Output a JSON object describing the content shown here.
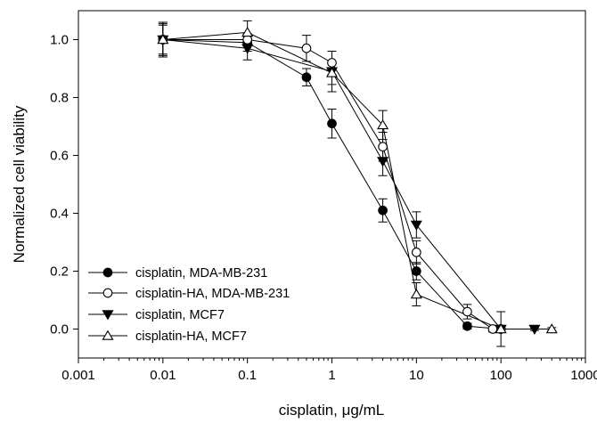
{
  "chart_data": {
    "type": "scatter",
    "title": "",
    "xlabel": "cisplatin, μg/mL",
    "ylabel": "Normalized cell viability",
    "x_scale": "log",
    "xlim": [
      0.001,
      1000
    ],
    "ylim": [
      -0.1,
      1.1
    ],
    "x_ticks": [
      0.001,
      0.01,
      0.1,
      1,
      10,
      100,
      1000
    ],
    "x_tick_labels": [
      "0.001",
      "0.01",
      "0.1",
      "1",
      "10",
      "100",
      "1000"
    ],
    "y_ticks": [
      0.0,
      0.2,
      0.4,
      0.6,
      0.8,
      1.0
    ],
    "y_tick_labels": [
      "0.0",
      "0.2",
      "0.4",
      "0.6",
      "0.8",
      "1.0"
    ],
    "grid": false,
    "legend_position": "bottom-left",
    "series": [
      {
        "name": "cisplatin, MDA-MB-231",
        "marker": "filled-circle",
        "x": [
          0.01,
          0.1,
          0.5,
          1,
          4,
          10,
          40,
          100
        ],
        "y": [
          1.0,
          0.99,
          0.87,
          0.71,
          0.41,
          0.2,
          0.01,
          0.0
        ],
        "err": [
          0.06,
          0.03,
          0.03,
          0.05,
          0.04,
          0.03,
          0.01,
          0.01
        ]
      },
      {
        "name": "cisplatin-HA, MDA-MB-231",
        "marker": "open-circle",
        "x": [
          0.01,
          0.1,
          0.5,
          1,
          4,
          10,
          40,
          80,
          100
        ],
        "y": [
          1.0,
          1.0,
          0.97,
          0.92,
          0.63,
          0.265,
          0.06,
          0.0,
          0.0
        ],
        "err": [
          0.06,
          0.02,
          0.045,
          0.04,
          0.05,
          0.04,
          0.025,
          0.01,
          0.06
        ]
      },
      {
        "name": "cisplatin, MCF7",
        "marker": "filled-triangle-down",
        "x": [
          0.01,
          0.1,
          1,
          4,
          10,
          100,
          250
        ],
        "y": [
          1.0,
          0.97,
          0.89,
          0.58,
          0.36,
          0.0,
          0.0
        ],
        "err": [
          0.05,
          0.04,
          0.07,
          0.05,
          0.045,
          0.01,
          0.005
        ]
      },
      {
        "name": "cisplatin-HA, MCF7",
        "marker": "open-triangle-up",
        "x": [
          0.01,
          0.1,
          1,
          4,
          10,
          100,
          400
        ],
        "y": [
          1.0,
          1.025,
          0.885,
          0.705,
          0.12,
          0.0,
          0.0
        ],
        "err": [
          0.055,
          0.04,
          0.04,
          0.05,
          0.04,
          0.01,
          0.005
        ]
      }
    ]
  }
}
